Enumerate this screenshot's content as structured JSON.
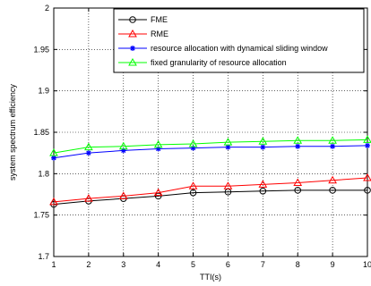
{
  "chart_data": {
    "type": "line",
    "title": "",
    "xlabel": "TTI(s)",
    "ylabel": "system spectrum efficiency",
    "xlim": [
      1,
      10
    ],
    "ylim": [
      1.7,
      2.0
    ],
    "x_ticks": [
      "1",
      "2",
      "3",
      "4",
      "5",
      "6",
      "7",
      "8",
      "9",
      "10"
    ],
    "y_ticks": [
      "1.7",
      "1.75",
      "1.8",
      "1.85",
      "1.9",
      "1.95",
      "2"
    ],
    "grid": true,
    "legend_position": "top-right",
    "x": [
      1,
      2,
      3,
      4,
      5,
      6,
      7,
      8,
      9,
      10
    ],
    "series": [
      {
        "name": "FME",
        "color": "#000000",
        "marker": "circle",
        "values": [
          1.763,
          1.767,
          1.77,
          1.773,
          1.777,
          1.778,
          1.779,
          1.78,
          1.78,
          1.78
        ]
      },
      {
        "name": "RME",
        "color": "#ff0000",
        "marker": "triangle",
        "values": [
          1.766,
          1.77,
          1.773,
          1.777,
          1.785,
          1.785,
          1.787,
          1.789,
          1.792,
          1.795
        ]
      },
      {
        "name": "resource allocation with dynamical sliding window",
        "color": "#0000ff",
        "marker": "star",
        "values": [
          1.819,
          1.825,
          1.828,
          1.83,
          1.831,
          1.832,
          1.832,
          1.833,
          1.833,
          1.834
        ]
      },
      {
        "name": "fixed granularity of resource allocation",
        "color": "#00ff00",
        "marker": "triangle",
        "values": [
          1.825,
          1.832,
          1.833,
          1.835,
          1.836,
          1.838,
          1.839,
          1.84,
          1.84,
          1.841
        ]
      }
    ]
  }
}
